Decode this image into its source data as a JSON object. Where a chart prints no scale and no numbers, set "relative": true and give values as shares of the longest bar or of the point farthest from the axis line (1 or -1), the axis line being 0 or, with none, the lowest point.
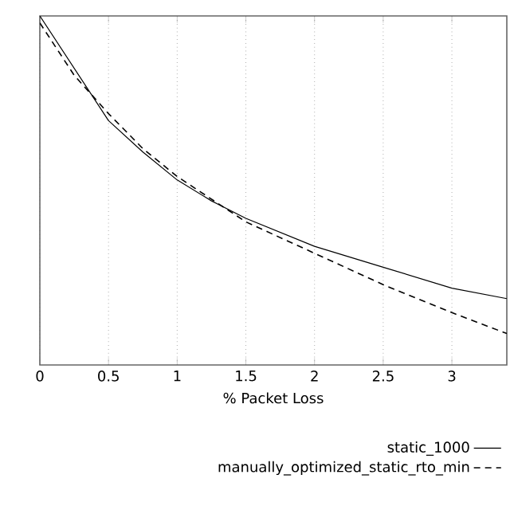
{
  "chart_data": {
    "type": "line",
    "relative": true,
    "xlabel": "% Packet Loss",
    "xlim": [
      0,
      3.4
    ],
    "xticks": [
      0,
      0.5,
      1,
      1.5,
      2,
      2.5,
      3
    ],
    "grid": "x",
    "legend": "bottom right",
    "marker": "none",
    "series": [
      {
        "name": "static_1000",
        "color": "#000000",
        "line_style": "solid",
        "x": [
          0,
          0.25,
          0.5,
          0.75,
          1,
          1.25,
          1.5,
          2,
          2.5,
          3,
          3.4
        ],
        "values": [
          1.0,
          0.85,
          0.7,
          0.61,
          0.53,
          0.47,
          0.42,
          0.34,
          0.28,
          0.22,
          0.19
        ]
      },
      {
        "name": "manually_optimized_static_rto_min",
        "color": "#000000",
        "line_style": "dashed",
        "x": [
          0,
          0.25,
          0.5,
          0.75,
          1,
          1.5,
          2,
          2.5,
          3,
          3.4
        ],
        "values": [
          0.98,
          0.83,
          0.72,
          0.62,
          0.54,
          0.41,
          0.32,
          0.23,
          0.15,
          0.09
        ]
      }
    ]
  }
}
